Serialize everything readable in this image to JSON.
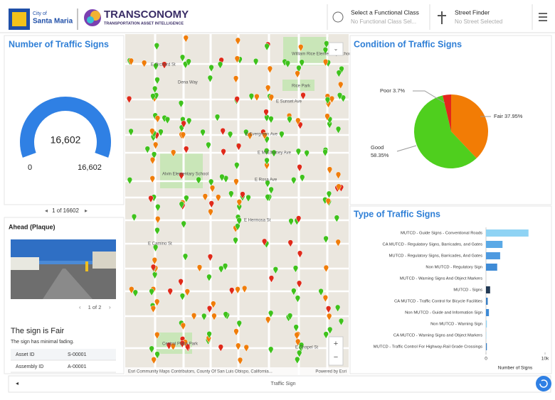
{
  "header": {
    "city_small": "City of",
    "city": "Santa Maria",
    "brand": "TRANSCONOMY",
    "tagline": "TRANSPORTATION ASSET INTELLIGENCE",
    "functional_class": {
      "label": "Select a Functional Class",
      "value": "No Functional Class Sel..."
    },
    "street_finder": {
      "label": "Street Finder",
      "value": "No Street Selected"
    }
  },
  "gauge": {
    "title": "Number of Traffic Signs",
    "value": {
      "value": 16602,
      "label": "16,602"
    },
    "min": 0,
    "max": {
      "value": 16602,
      "label": "16,602"
    },
    "color": "#2f80e4",
    "pager": "1 of 16602"
  },
  "detail": {
    "title": "Ahead (Plaque)",
    "pager": "1 of 2",
    "heading": "The sign is Fair",
    "description": "The sign has minimal fading.",
    "rows": [
      [
        "Asset ID",
        "S-00001"
      ],
      [
        "Assembly ID",
        "A-00001"
      ]
    ]
  },
  "map": {
    "labels": [
      "E Orchard St",
      "Dena Way",
      "E Sunset Ave",
      "E Evergreen Ave",
      "E McElhaney Ave",
      "E Rosa Ave",
      "E Hermosa St",
      "E Camino St",
      "E Chapel St",
      "William Rice Elementary School",
      "Alvin Elementary School",
      "Rice Park",
      "Central Plaza Park"
    ],
    "attribution": "Esri Community Maps Contributors, County Of San Luis Obispo, California...",
    "powered": "Powered by Esri"
  },
  "chart_data": [
    {
      "type": "pie",
      "title": "Condition of Traffic Signs",
      "categories": [
        "Poor",
        "Fair",
        "Good"
      ],
      "values": [
        3.7,
        37.95,
        58.35
      ],
      "value_labels": [
        "3.7%",
        "37.95%",
        "58.35%"
      ],
      "colors": [
        "#e3261c",
        "#f27c05",
        "#4fcf1e"
      ]
    },
    {
      "type": "hbar",
      "title": "Type of Traffic Signs",
      "x_label": "Number of Signs",
      "categories": [
        "MUTCD - Guide Signs - Conventional Roads",
        "CA MUTCD - Regulatory Signs, Barricades, and Gates",
        "MUTCD - Regulatory Signs, Barricades, And Gates",
        "Non MUTCD - Regulatory Sign",
        "MUTCD - Warning Signs And Object Markers",
        "MUTCD - Signs",
        "CA MUTCD - Traffic Control for Bicycle Facilities",
        "Non MUTCD - Guide and Information Sign",
        "Non MUTCD - Warning Sign",
        "CA MUTCD - Warning Signs and Object Markers",
        "MUTCD - Traffic Control For Highway-Rail Grade Crossings"
      ],
      "values": [
        7200,
        2800,
        2400,
        1900,
        0,
        700,
        300,
        500,
        150,
        50,
        150
      ],
      "colors": [
        "#8fd3f4",
        "#5aa9e6",
        "#4e9ae0",
        "#3f8bd6",
        "#3f8bd6",
        "#223a55",
        "#3a7fc4",
        "#3f8bd6",
        "#8fd3f4",
        "#8fd3f4",
        "#3a7fc4"
      ],
      "xlim": [
        0,
        10000
      ],
      "xticks": [
        0,
        {
          "value": 10000,
          "label": "10k"
        }
      ]
    }
  ],
  "footer": {
    "title": "Traffic Sign"
  }
}
